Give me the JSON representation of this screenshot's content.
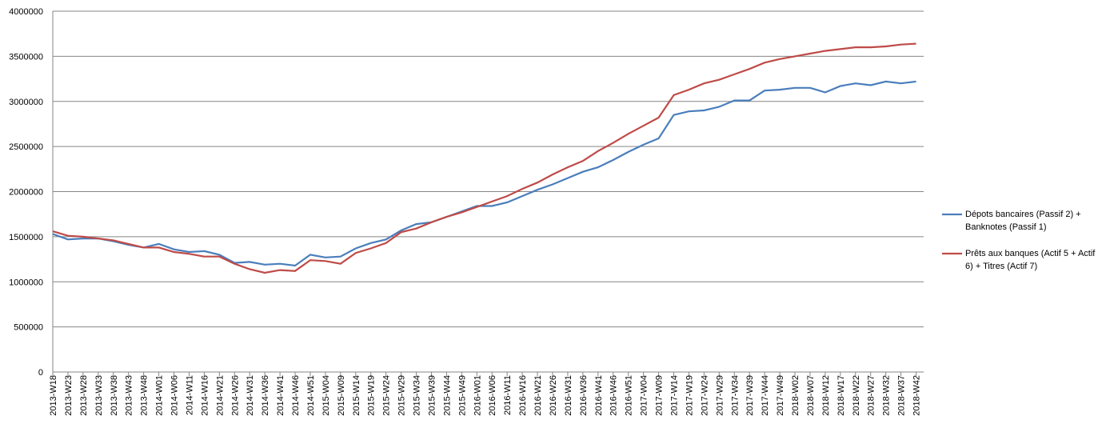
{
  "chart_data": {
    "type": "line",
    "categories": [
      "2013-W18",
      "2013-W23",
      "2013-W28",
      "2013-W33",
      "2013-W38",
      "2013-W43",
      "2013-W48",
      "2014-W01",
      "2014-W06",
      "2014-W11",
      "2014-W16",
      "2014-W21",
      "2014-W26",
      "2014-W31",
      "2014-W36",
      "2014-W41",
      "2014-W46",
      "2014-W51",
      "2015-W04",
      "2015-W09",
      "2015-W14",
      "2015-W19",
      "2015-W24",
      "2015-W29",
      "2015-W34",
      "2015-W39",
      "2015-W44",
      "2015-W49",
      "2016-W01",
      "2016-W06",
      "2016-W11",
      "2016-W16",
      "2016-W21",
      "2016-W26",
      "2016-W31",
      "2016-W36",
      "2016-W41",
      "2016-W46",
      "2016-W51",
      "2017-W04",
      "2017-W09",
      "2017-W14",
      "2017-W19",
      "2017-W24",
      "2017-W29",
      "2017-W34",
      "2017-W39",
      "2017-W44",
      "2017-W49",
      "2018-W02",
      "2018-W07",
      "2018-W12",
      "2018-W17",
      "2018-W22",
      "2018-W27",
      "2018-W32",
      "2018-W37",
      "2018-W42"
    ],
    "series": [
      {
        "name": "Dépots bancaires (Passif 2) + Banknotes (Passif 1)",
        "color": "#4a7ebb",
        "values": [
          1530000,
          1470000,
          1480000,
          1480000,
          1450000,
          1410000,
          1380000,
          1420000,
          1360000,
          1330000,
          1340000,
          1300000,
          1210000,
          1220000,
          1190000,
          1200000,
          1180000,
          1300000,
          1270000,
          1280000,
          1370000,
          1430000,
          1470000,
          1570000,
          1640000,
          1660000,
          1720000,
          1780000,
          1840000,
          1840000,
          1880000,
          1950000,
          2020000,
          2080000,
          2150000,
          2220000,
          2270000,
          2350000,
          2440000,
          2520000,
          2590000,
          2850000,
          2890000,
          2900000,
          2940000,
          3010000,
          3010000,
          3120000,
          3130000,
          3150000,
          3150000,
          3100000,
          3170000,
          3200000,
          3180000,
          3220000,
          3200000,
          3220000
        ]
      },
      {
        "name": "Prêts aux banques (Actif 5 + Actif 6) + Titres (Actif 7)",
        "color": "#be4b48",
        "values": [
          1560000,
          1510000,
          1500000,
          1480000,
          1460000,
          1420000,
          1380000,
          1380000,
          1330000,
          1310000,
          1280000,
          1280000,
          1200000,
          1140000,
          1100000,
          1130000,
          1120000,
          1240000,
          1230000,
          1200000,
          1320000,
          1370000,
          1430000,
          1550000,
          1590000,
          1660000,
          1720000,
          1770000,
          1830000,
          1890000,
          1950000,
          2030000,
          2100000,
          2190000,
          2270000,
          2340000,
          2450000,
          2540000,
          2640000,
          2730000,
          2820000,
          3070000,
          3130000,
          3200000,
          3240000,
          3300000,
          3360000,
          3430000,
          3470000,
          3500000,
          3530000,
          3560000,
          3580000,
          3600000,
          3600000,
          3610000,
          3630000,
          3640000
        ]
      }
    ],
    "ylim": [
      0,
      4000000
    ],
    "yticks": [
      0,
      500000,
      1000000,
      1500000,
      2000000,
      2500000,
      3000000,
      3500000,
      4000000
    ],
    "grid": true,
    "legend": "right"
  }
}
